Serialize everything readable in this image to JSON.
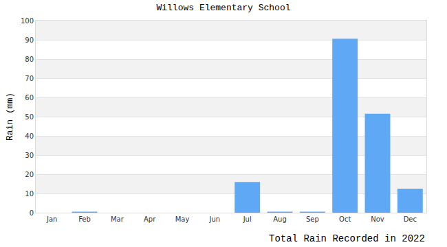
{
  "chart_data": {
    "type": "bar",
    "title": "Willows Elementary School",
    "ylabel": "Rain (mm)",
    "xlabel": "Total Rain Recorded in 2022",
    "categories": [
      "Jan",
      "Feb",
      "Mar",
      "Apr",
      "May",
      "Jun",
      "Jul",
      "Aug",
      "Sep",
      "Oct",
      "Nov",
      "Dec"
    ],
    "values": [
      0,
      0.5,
      0,
      0,
      0,
      0,
      16,
      0.5,
      0.5,
      90.5,
      51.5,
      12.5
    ],
    "color": "#5ea8f5",
    "ylim": [
      0,
      100
    ],
    "yticks": [
      0,
      10,
      20,
      30,
      40,
      50,
      60,
      70,
      80,
      90,
      100
    ],
    "grid": true
  }
}
